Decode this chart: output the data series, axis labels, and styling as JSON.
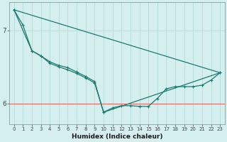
{
  "xlabel": "Humidex (Indice chaleur)",
  "bg_color": "#d5efef",
  "line_color": "#1a7a6e",
  "grid_color": "#b8dede",
  "red_line_color": "#e06060",
  "xlim": [
    -0.5,
    23.5
  ],
  "ylim": [
    5.72,
    7.38
  ],
  "yticks": [
    6,
    7
  ],
  "xticks": [
    0,
    1,
    2,
    3,
    4,
    5,
    6,
    7,
    8,
    9,
    10,
    11,
    12,
    13,
    14,
    15,
    16,
    17,
    18,
    19,
    20,
    21,
    22,
    23
  ],
  "red_y": 6.0,
  "line1_x": [
    0,
    1,
    2,
    3,
    4,
    5,
    6,
    7,
    8,
    9,
    10,
    11,
    12,
    13,
    14,
    15,
    16,
    17,
    18,
    19,
    20,
    21,
    22,
    23
  ],
  "line1_y": [
    7.28,
    7.07,
    6.72,
    6.65,
    6.57,
    6.52,
    6.49,
    6.43,
    6.37,
    6.3,
    5.88,
    5.94,
    5.97,
    5.97,
    5.96,
    5.96,
    6.07,
    6.2,
    6.23,
    6.23,
    6.23,
    6.25,
    6.32,
    6.42
  ],
  "line2_x": [
    0,
    2,
    3,
    4,
    5,
    6,
    7,
    8,
    9,
    10,
    23
  ],
  "line2_y": [
    7.28,
    6.72,
    6.65,
    6.55,
    6.5,
    6.46,
    6.41,
    6.35,
    6.28,
    5.88,
    6.42
  ],
  "line3_x": [
    0,
    23
  ],
  "line3_y": [
    7.28,
    6.42
  ]
}
